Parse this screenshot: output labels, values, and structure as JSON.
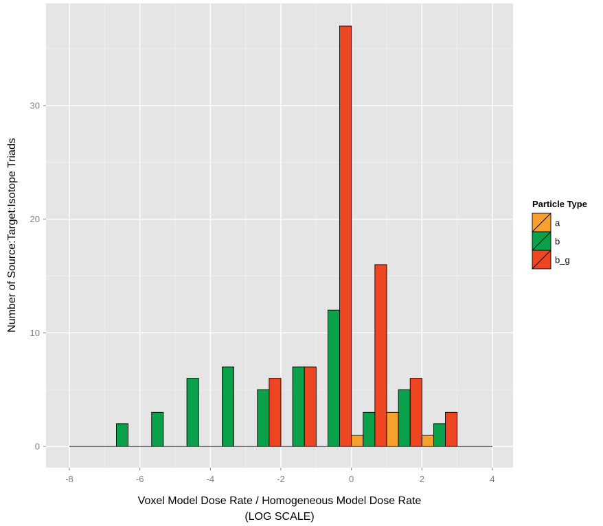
{
  "chart_data": {
    "type": "bar",
    "xlabel_line1": "Voxel Model Dose Rate / Homogeneous Model Dose Rate",
    "xlabel_line2": "(LOG SCALE)",
    "ylabel": "Number of Source:Target:Isotope Triads",
    "xlim": [
      -8,
      4
    ],
    "ylim": [
      0,
      37
    ],
    "x_ticks": [
      -8,
      -6,
      -4,
      -2,
      0,
      2,
      4
    ],
    "x_tick_labels": [
      "-8",
      "-6",
      "-4",
      "-2",
      "0",
      "2",
      "4"
    ],
    "y_ticks": [
      0,
      10,
      20,
      30
    ],
    "y_tick_labels": [
      "0",
      "10",
      "20",
      "30"
    ],
    "grid": true,
    "bin_width": 1,
    "bins": [
      -8,
      -7,
      -6,
      -5,
      -4,
      -3,
      -2,
      -1,
      0,
      1,
      2,
      3
    ],
    "legend_position": "right",
    "legend": {
      "title": "Particle Type",
      "entries": [
        "a",
        "b",
        "b_g"
      ]
    },
    "series": [
      {
        "name": "a",
        "color": "#F7A030",
        "values": [
          0,
          0,
          0,
          0,
          0,
          0,
          0,
          0,
          1,
          3,
          1,
          0
        ]
      },
      {
        "name": "b",
        "color": "#0BA14B",
        "values": [
          0,
          2,
          3,
          6,
          7,
          5,
          7,
          12,
          3,
          5,
          2,
          0
        ]
      },
      {
        "name": "b_g",
        "color": "#EE4523",
        "values": [
          0,
          0,
          0,
          0,
          0,
          6,
          7,
          37,
          16,
          6,
          3,
          0
        ]
      }
    ]
  }
}
